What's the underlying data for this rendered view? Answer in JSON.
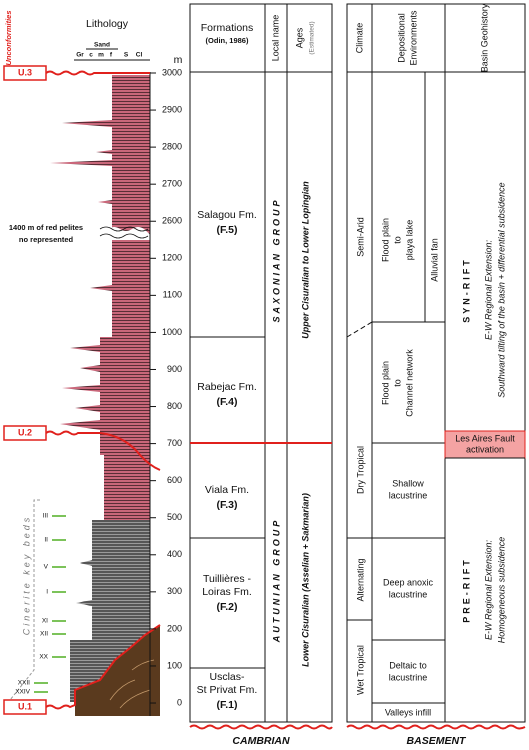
{
  "left": {
    "unconformities_title": "Unconformities",
    "lithology_title": "Lithology",
    "grain_size_group": "Sand",
    "grain_sizes": [
      "Gr",
      "c",
      "m",
      "f",
      "S",
      "Cl"
    ],
    "depth_unit": "m",
    "depths": [
      3000,
      2900,
      2800,
      2700,
      2600,
      1200,
      1100,
      1000,
      900,
      800,
      700,
      600,
      500,
      400,
      300,
      200,
      100,
      0
    ],
    "gap_note": [
      "1400 m of red pelites",
      "no represented"
    ],
    "key_beds_title": "Cinerite key beds",
    "key_beds": [
      "III",
      "II",
      "V",
      "I",
      "XI",
      "XII",
      "XX",
      "XXII",
      "XXIV"
    ],
    "unconformities": [
      "U.3",
      "U.2",
      "U.1"
    ]
  },
  "stratigraphy": {
    "header": {
      "formations": "Formations",
      "formations_source": "(Odin, 1986)",
      "local_name": "Local name",
      "ages": "Ages",
      "ages_note": "(Estimated)"
    },
    "formations": [
      {
        "name": [
          "Salagou Fm."
        ],
        "code": "(F.5)"
      },
      {
        "name": [
          "Rabejac Fm."
        ],
        "code": "(F.4)"
      },
      {
        "name": [
          "Viala Fm."
        ],
        "code": "(F.3)"
      },
      {
        "name": [
          "Tuillières -",
          "Loiras Fm."
        ],
        "code": "(F.2)"
      },
      {
        "name": [
          "Usclas-",
          "St Privat Fm."
        ],
        "code": "(F.1)"
      }
    ],
    "groups": [
      "SAXONIAN GROUP",
      "AUTUNIAN GROUP"
    ],
    "ages": [
      "Upper Cisuralian to Lower Lopingian",
      "Lower Cisuralian (Asselian + Sakmarian)"
    ],
    "base": "CAMBRIAN"
  },
  "setting": {
    "header": {
      "climate": "Climate",
      "environments": [
        "Depositional",
        "Environments"
      ],
      "geohistory": "Basin Geohistory"
    },
    "climates": [
      "Semi-Arid",
      "Dry Tropical",
      "Alternating",
      "Wet Tropical"
    ],
    "environments": [
      [
        "Flood plain",
        "to",
        "playa lake"
      ],
      [
        "Alluvial fan"
      ],
      [
        "Flood plain",
        "to",
        "Channel network"
      ],
      [
        "Shallow",
        "lacustrine"
      ],
      [
        "Deep anoxic",
        "lacustrine"
      ],
      [
        "Deltaic to",
        "lacustrine"
      ],
      [
        "Valleys infill"
      ]
    ],
    "event": [
      "Les Aires Fault",
      "activation"
    ],
    "phases": [
      {
        "name": "SYN-RIFT",
        "regime": "E-W Regional Extension:",
        "detail": "Southward tilting of the basin + differential subsidence"
      },
      {
        "name": "PRE-RIFT",
        "regime": "E-W Regional Extension:",
        "detail": "Homogeneous subsidence"
      }
    ],
    "base": "BASEMENT"
  }
}
